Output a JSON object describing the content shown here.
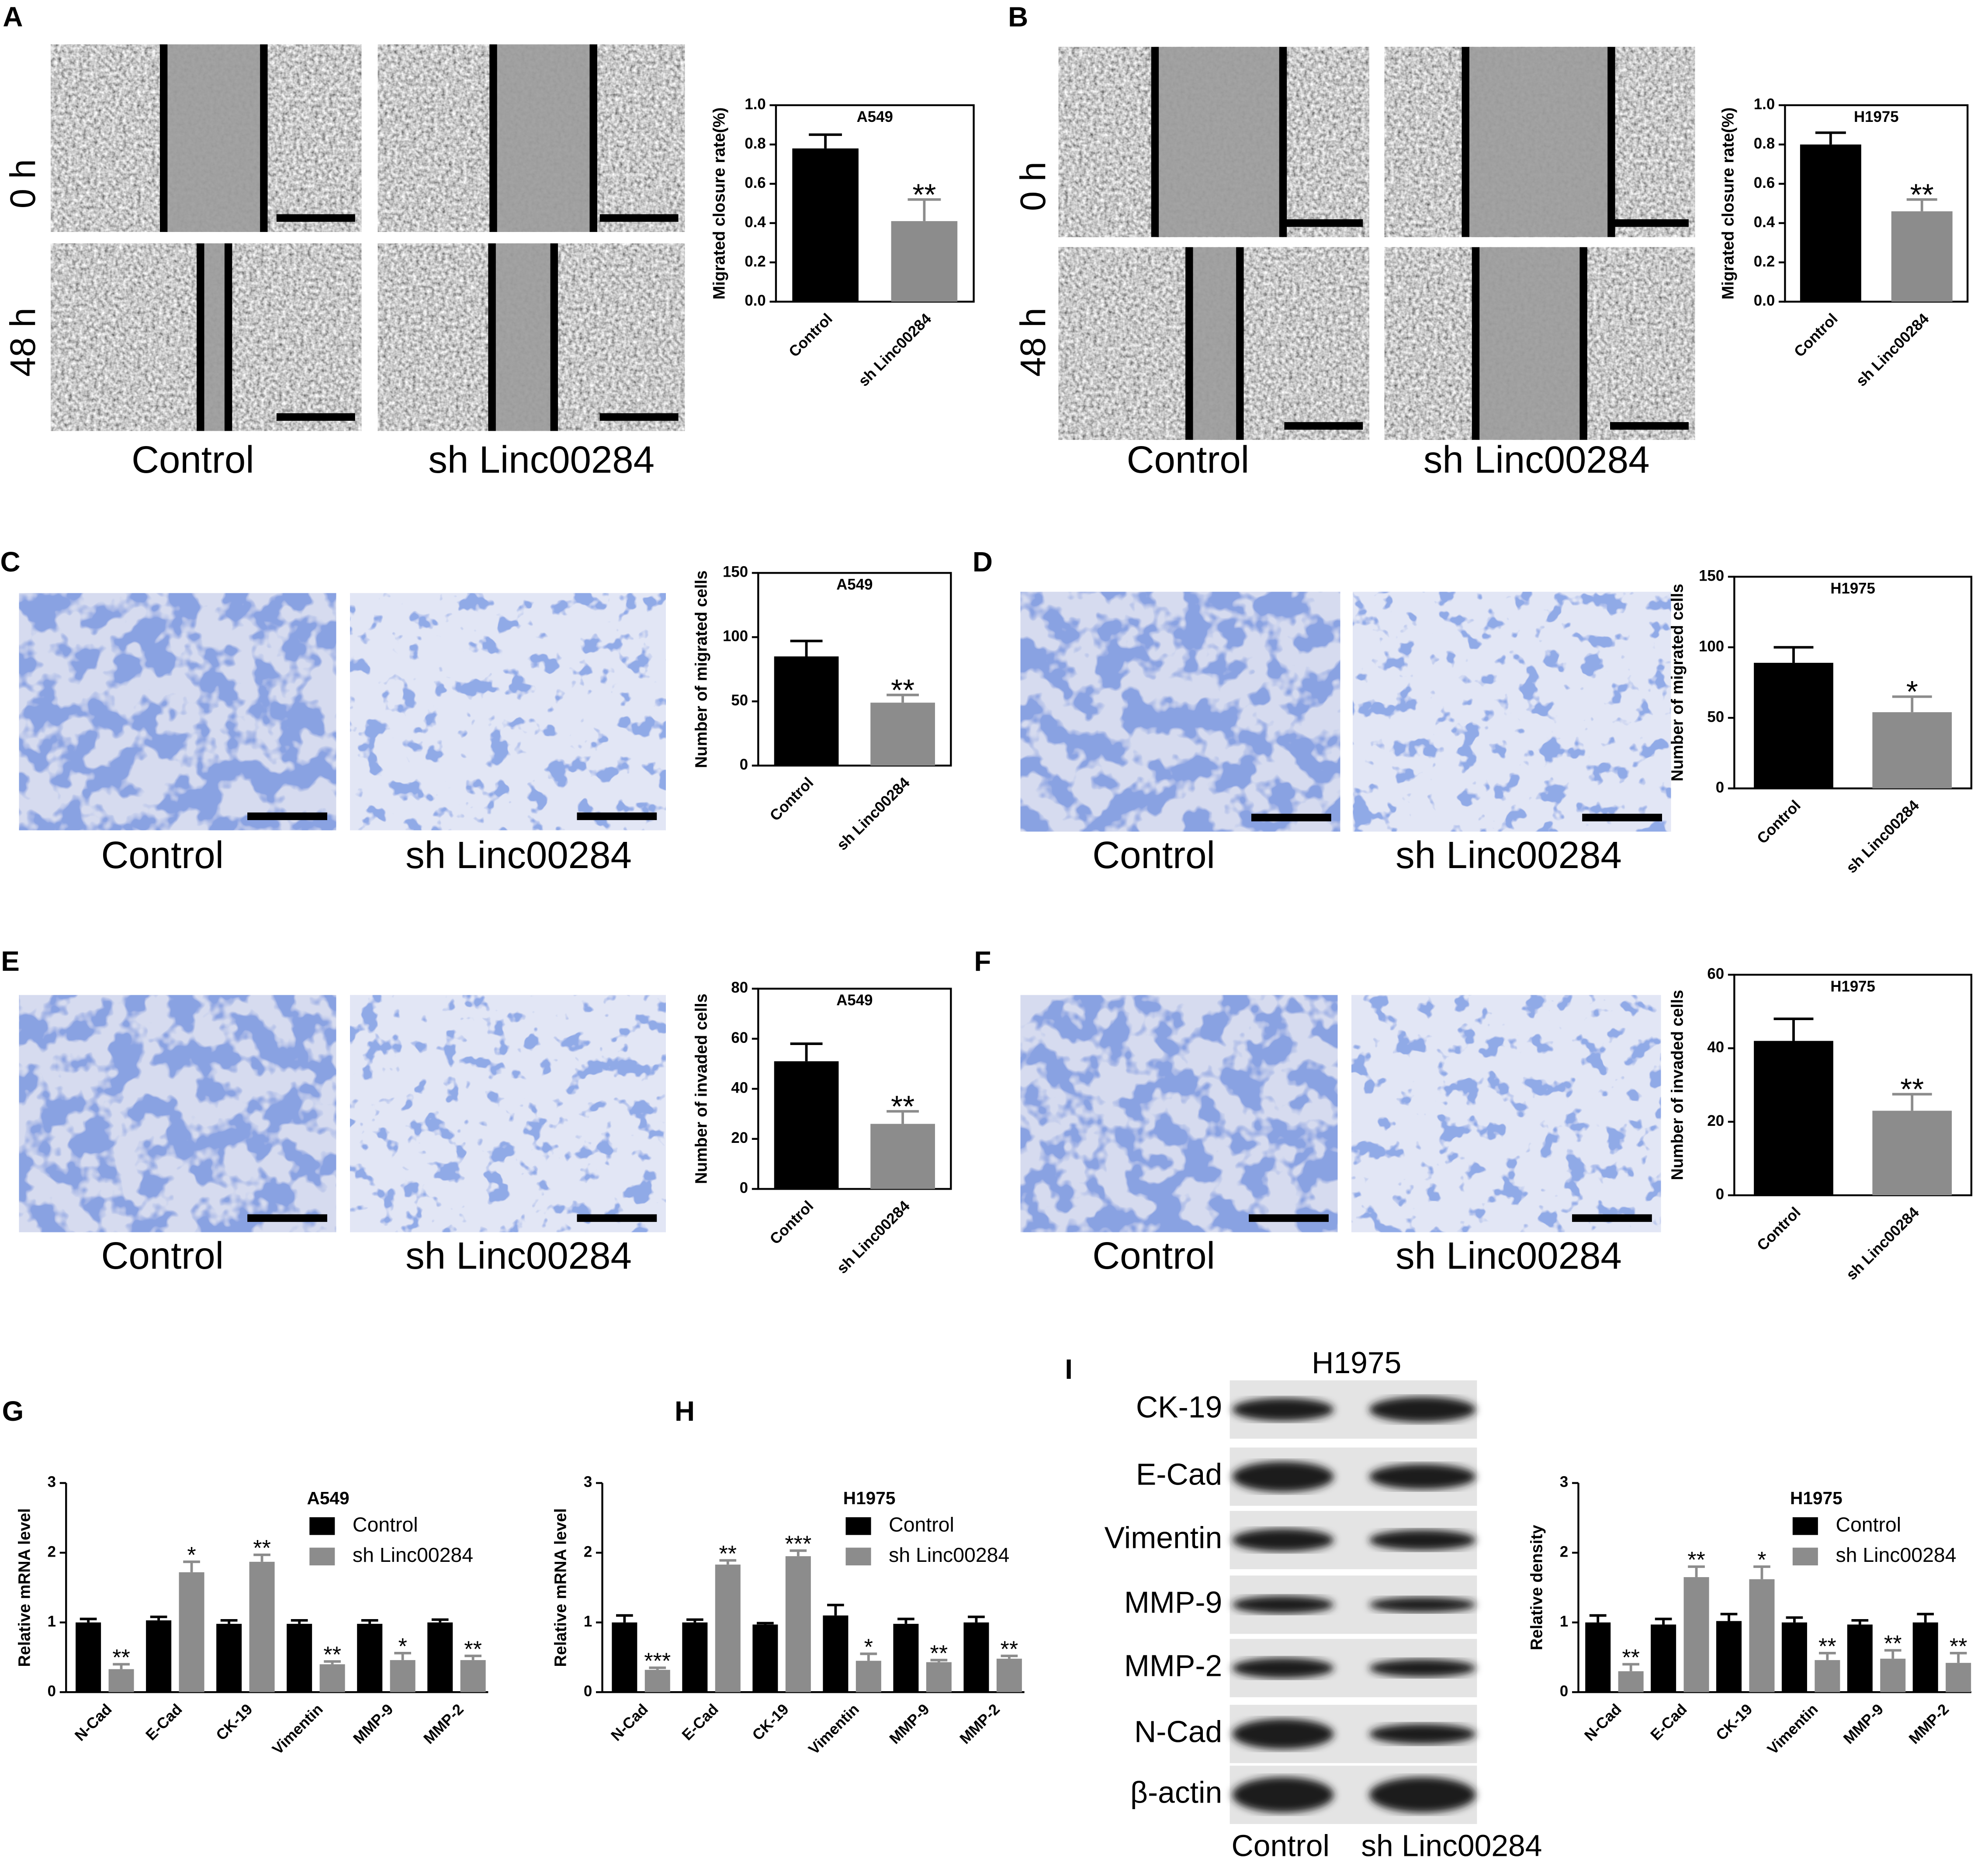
{
  "chart_data": [
    {
      "type": "bar",
      "title": "A549",
      "y_label": "Migrated closure rate(%)",
      "categories": [
        "Control",
        "sh Linc00284"
      ],
      "values": [
        0.78,
        0.41
      ],
      "errors": [
        0.07,
        0.11
      ],
      "colors": [
        "#000000",
        "#8c8c8c"
      ],
      "significance": [
        null,
        "**"
      ],
      "ylim": [
        0,
        1
      ],
      "yticks": [
        {
          "value": 0,
          "label": "0.0"
        },
        {
          "value": 0.2,
          "label": "0.2"
        },
        {
          "value": 0.4,
          "label": "0.4"
        },
        {
          "value": 0.6,
          "label": "0.6"
        },
        {
          "value": 0.8,
          "label": "0.8"
        },
        {
          "value": 1,
          "label": "1.0"
        }
      ],
      "box": true
    },
    {
      "type": "bar",
      "title": "H1975",
      "y_label": "Migrated closure rate(%)",
      "categories": [
        "Control",
        "sh Linc00284"
      ],
      "values": [
        0.8,
        0.46
      ],
      "errors": [
        0.06,
        0.06
      ],
      "colors": [
        "#000000",
        "#8c8c8c"
      ],
      "significance": [
        null,
        "**"
      ],
      "ylim": [
        0,
        1
      ],
      "yticks": [
        {
          "value": 0,
          "label": "0.0"
        },
        {
          "value": 0.2,
          "label": "0.2"
        },
        {
          "value": 0.4,
          "label": "0.4"
        },
        {
          "value": 0.6,
          "label": "0.6"
        },
        {
          "value": 0.8,
          "label": "0.8"
        },
        {
          "value": 1,
          "label": "1.0"
        }
      ],
      "box": true
    },
    {
      "type": "bar",
      "title": "A549",
      "y_label": "Number of migrated cells",
      "categories": [
        "Control",
        "sh Linc00284"
      ],
      "values": [
        85,
        49
      ],
      "errors": [
        12,
        6
      ],
      "colors": [
        "#000000",
        "#8c8c8c"
      ],
      "significance": [
        null,
        "**"
      ],
      "ylim": [
        0,
        150
      ],
      "yticks": [
        0,
        50,
        100,
        150
      ],
      "box": true
    },
    {
      "type": "bar",
      "title": "H1975",
      "y_label": "Number of migrated cells",
      "categories": [
        "Control",
        "sh Linc00284"
      ],
      "values": [
        89,
        54
      ],
      "errors": [
        11,
        11
      ],
      "colors": [
        "#000000",
        "#8c8c8c"
      ],
      "significance": [
        null,
        "*"
      ],
      "ylim": [
        0,
        150
      ],
      "yticks": [
        0,
        50,
        100,
        150
      ],
      "box": true
    },
    {
      "type": "bar",
      "title": "A549",
      "y_label": "Number of invaded cells",
      "categories": [
        "Control",
        "sh Linc00284"
      ],
      "values": [
        51,
        26
      ],
      "errors": [
        7,
        5
      ],
      "colors": [
        "#000000",
        "#8c8c8c"
      ],
      "significance": [
        null,
        "**"
      ],
      "ylim": [
        0,
        80
      ],
      "yticks": [
        0,
        20,
        40,
        60,
        80
      ],
      "box": true
    },
    {
      "type": "bar",
      "title": "H1975",
      "y_label": "Number of invaded cells",
      "categories": [
        "Control",
        "sh Linc00284"
      ],
      "values": [
        42,
        23
      ],
      "errors": [
        6,
        4.5
      ],
      "colors": [
        "#000000",
        "#8c8c8c"
      ],
      "significance": [
        null,
        "**"
      ],
      "ylim": [
        0,
        60
      ],
      "yticks": [
        0,
        20,
        40,
        60
      ],
      "box": true
    },
    {
      "type": "grouped_bar",
      "title": "A549",
      "y_label": "Relative mRNA level",
      "categories": [
        "N-Cad",
        "E-Cad",
        "CK-19",
        "Vimentin",
        "MMP-9",
        "MMP-2"
      ],
      "series": [
        {
          "name": "Control",
          "color": "#000000",
          "values": [
            1.0,
            1.03,
            0.98,
            0.98,
            0.98,
            1.0
          ],
          "errors": [
            0.05,
            0.05,
            0.05,
            0.05,
            0.05,
            0.04
          ]
        },
        {
          "name": "sh Linc00284",
          "color": "#8c8c8c",
          "values": [
            0.33,
            1.72,
            1.87,
            0.4,
            0.46,
            0.46
          ],
          "errors": [
            0.07,
            0.15,
            0.1,
            0.04,
            0.1,
            0.06
          ],
          "significance": [
            "**",
            "*",
            "**",
            "**",
            "*",
            "**"
          ]
        }
      ],
      "ylim": [
        0,
        3
      ],
      "yticks": [
        0,
        1,
        2,
        3
      ],
      "legend": "upper right",
      "box": false
    },
    {
      "type": "grouped_bar",
      "title": "H1975",
      "y_label": "Relative mRNA level",
      "categories": [
        "N-Cad",
        "E-Cad",
        "CK-19",
        "Vimentin",
        "MMP-9",
        "MMP-2"
      ],
      "series": [
        {
          "name": "Control",
          "color": "#000000",
          "values": [
            1.0,
            1.0,
            0.97,
            1.1,
            0.98,
            1.0
          ],
          "errors": [
            0.1,
            0.04,
            0.02,
            0.15,
            0.07,
            0.08
          ]
        },
        {
          "name": "sh Linc00284",
          "color": "#8c8c8c",
          "values": [
            0.32,
            1.83,
            1.95,
            0.45,
            0.43,
            0.48
          ],
          "errors": [
            0.03,
            0.06,
            0.08,
            0.1,
            0.03,
            0.04
          ],
          "significance": [
            "***",
            "**",
            "***",
            "*",
            "**",
            "**"
          ]
        }
      ],
      "ylim": [
        0,
        3
      ],
      "yticks": [
        0,
        1,
        2,
        3
      ],
      "legend": "upper right",
      "box": false
    },
    {
      "type": "grouped_bar",
      "title": "H1975",
      "y_label": "Relative density",
      "categories": [
        "N-Cad",
        "E-Cad",
        "CK-19",
        "Vimentin",
        "MMP-9",
        "MMP-2"
      ],
      "series": [
        {
          "name": "Control",
          "color": "#000000",
          "values": [
            1.0,
            0.97,
            1.02,
            1.0,
            0.97,
            1.0
          ],
          "errors": [
            0.1,
            0.08,
            0.1,
            0.07,
            0.06,
            0.12
          ]
        },
        {
          "name": "sh Linc00284",
          "color": "#8c8c8c",
          "values": [
            0.3,
            1.65,
            1.62,
            0.46,
            0.48,
            0.42
          ],
          "errors": [
            0.1,
            0.15,
            0.18,
            0.1,
            0.12,
            0.14
          ],
          "significance": [
            "**",
            "**",
            "*",
            "**",
            "**",
            "**"
          ]
        }
      ],
      "ylim": [
        0,
        3
      ],
      "yticks": [
        0,
        1,
        2,
        3
      ],
      "legend": "upper right",
      "box": false
    }
  ],
  "panels": [
    {
      "label": "A",
      "rows": [
        "0 h",
        "48 h"
      ],
      "columns": [
        "Control",
        "sh Linc00284"
      ]
    },
    {
      "label": "B",
      "rows": [
        "0 h",
        "48 h"
      ],
      "columns": [
        "Control",
        "sh Linc00284"
      ]
    },
    {
      "label": "C",
      "columns": [
        "Control",
        "sh Linc00284"
      ]
    },
    {
      "label": "D",
      "columns": [
        "Control",
        "sh Linc00284"
      ]
    },
    {
      "label": "E",
      "columns": [
        "Control",
        "sh Linc00284"
      ]
    },
    {
      "label": "F",
      "columns": [
        "Control",
        "sh Linc00284"
      ]
    },
    {
      "label": "G"
    },
    {
      "label": "H"
    },
    {
      "label": "I",
      "blot_title": "H1975",
      "rows": [
        "CK-19",
        "E-Cad",
        "Vimentin",
        "MMP-9",
        "MMP-2",
        "N-Cad",
        "β-actin"
      ],
      "columns": [
        "Control",
        "sh Linc00284"
      ]
    }
  ]
}
